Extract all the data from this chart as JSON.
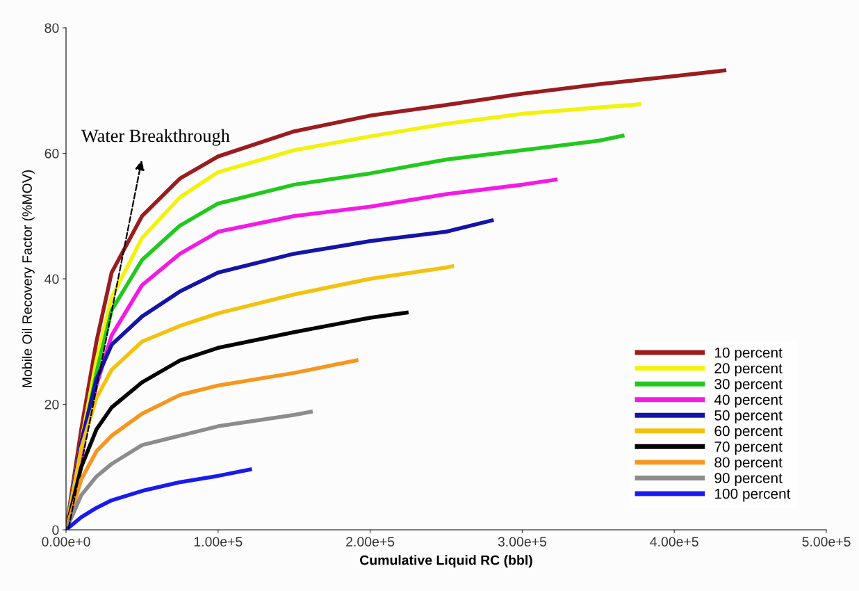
{
  "chart_data": {
    "type": "line",
    "xlabel": "Cumulative Liquid RC (bbl)",
    "ylabel": "Mobile Oil Recovery Factor (%MOV)",
    "xlim": [
      0,
      500000
    ],
    "ylim": [
      0,
      80
    ],
    "xticks": [
      {
        "value": 0,
        "label": "0.00e+0"
      },
      {
        "value": 100000,
        "label": "1.00e+5"
      },
      {
        "value": 200000,
        "label": "2.00e+5"
      },
      {
        "value": 300000,
        "label": "3.00e+5"
      },
      {
        "value": 400000,
        "label": "4.00e+5"
      },
      {
        "value": 500000,
        "label": "5.00e+5"
      }
    ],
    "yticks": [
      0,
      20,
      40,
      60,
      80
    ],
    "grid": false,
    "legend": "bottom right",
    "marker": "none",
    "line_style": "solid",
    "annotations": [
      "Water Breakthrough"
    ],
    "series": [
      {
        "name": "10 percent",
        "color": "#9b1c1f",
        "x": [
          0,
          10000,
          20000,
          30000,
          50000,
          75000,
          100000,
          150000,
          200000,
          250000,
          300000,
          350000,
          400000,
          433000
        ],
        "values": [
          0,
          16,
          30,
          41,
          50,
          56,
          59.5,
          63.5,
          66,
          67.7,
          69.5,
          71,
          72.3,
          73.2
        ]
      },
      {
        "name": "20 percent",
        "color": "#f2f20a",
        "x": [
          0,
          10000,
          20000,
          30000,
          50000,
          75000,
          100000,
          150000,
          200000,
          250000,
          300000,
          350000,
          377000
        ],
        "values": [
          0,
          14,
          27,
          37,
          46.5,
          53,
          57,
          60.5,
          62.7,
          64.7,
          66.3,
          67.3,
          67.8
        ]
      },
      {
        "name": "30 percent",
        "color": "#22c81e",
        "x": [
          0,
          10000,
          20000,
          30000,
          50000,
          75000,
          100000,
          150000,
          200000,
          250000,
          300000,
          350000,
          366000
        ],
        "values": [
          0,
          13,
          25,
          35,
          43,
          48.5,
          52,
          55,
          56.8,
          59,
          60.5,
          62,
          62.8
        ]
      },
      {
        "name": "40 percent",
        "color": "#f41ae6",
        "x": [
          0,
          10000,
          20000,
          30000,
          50000,
          75000,
          100000,
          150000,
          200000,
          250000,
          300000,
          322000
        ],
        "values": [
          0,
          12,
          23,
          31,
          39,
          44,
          47.5,
          50,
          51.5,
          53.5,
          55,
          55.8
        ]
      },
      {
        "name": "50 percent",
        "color": "#1414a8",
        "x": [
          0,
          10000,
          20000,
          30000,
          50000,
          75000,
          100000,
          150000,
          200000,
          250000,
          280000
        ],
        "values": [
          0,
          14,
          24,
          29.5,
          34,
          38,
          41,
          44,
          46,
          47.5,
          49.3
        ]
      },
      {
        "name": "60 percent",
        "color": "#f4c20e",
        "x": [
          0,
          10000,
          20000,
          30000,
          50000,
          75000,
          100000,
          150000,
          200000,
          250000,
          254000
        ],
        "values": [
          0,
          13,
          21,
          25.5,
          30,
          32.5,
          34.5,
          37.5,
          40,
          41.8,
          42
        ]
      },
      {
        "name": "70 percent",
        "color": "#050505",
        "x": [
          0,
          10000,
          20000,
          30000,
          50000,
          75000,
          100000,
          150000,
          200000,
          224000
        ],
        "values": [
          0,
          10,
          16,
          19.5,
          23.5,
          27,
          29,
          31.5,
          33.8,
          34.6
        ]
      },
      {
        "name": "80 percent",
        "color": "#f7961e",
        "x": [
          0,
          10000,
          20000,
          30000,
          50000,
          75000,
          100000,
          150000,
          191000
        ],
        "values": [
          0,
          8,
          12.5,
          15,
          18.5,
          21.5,
          23,
          25,
          27
        ]
      },
      {
        "name": "90 percent",
        "color": "#8c8c8c",
        "x": [
          0,
          10000,
          20000,
          30000,
          50000,
          75000,
          100000,
          150000,
          161000
        ],
        "values": [
          0,
          5.5,
          8.5,
          10.5,
          13.5,
          15,
          16.5,
          18.3,
          18.8
        ]
      },
      {
        "name": "100 percent",
        "color": "#1a1af0",
        "x": [
          0,
          10000,
          20000,
          30000,
          50000,
          75000,
          100000,
          121000
        ],
        "values": [
          0,
          2,
          3.5,
          4.7,
          6.2,
          7.6,
          8.6,
          9.6
        ]
      }
    ]
  }
}
